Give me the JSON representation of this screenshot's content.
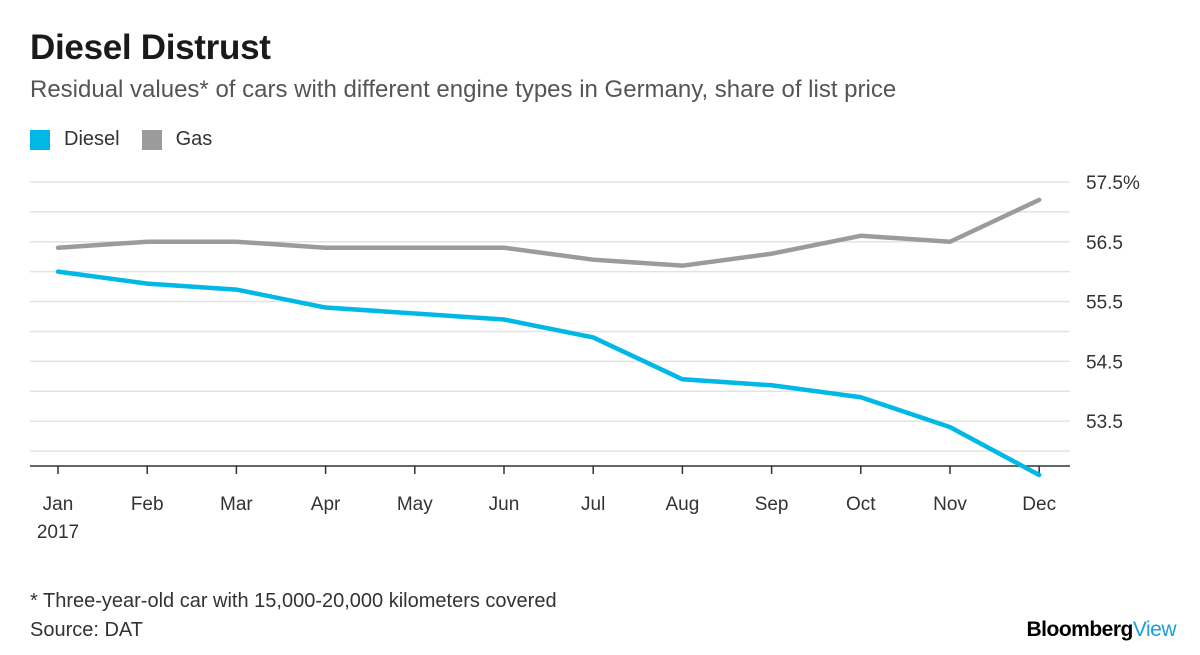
{
  "header": {
    "title": "Diesel Distrust",
    "subtitle": "Residual values* of cars with different engine types in Germany, share of list price"
  },
  "legend": [
    {
      "label": "Diesel",
      "color": "#00b8e6"
    },
    {
      "label": "Gas",
      "color": "#9b9b9b"
    }
  ],
  "chart_data": {
    "type": "line",
    "title": "Diesel Distrust",
    "xlabel": "",
    "ylabel": "",
    "categories": [
      "Jan",
      "Feb",
      "Mar",
      "Apr",
      "May",
      "Jun",
      "Jul",
      "Aug",
      "Sep",
      "Oct",
      "Nov",
      "Dec"
    ],
    "year_label": "2017",
    "ylim": [
      52.75,
      57.75
    ],
    "yticks": [
      53.5,
      54.5,
      55.5,
      56.5,
      57.5
    ],
    "ytick_labels": [
      "53.5",
      "54.5",
      "55.5",
      "56.5",
      "57.5%"
    ],
    "grid": true,
    "legend_position": "top-left",
    "series": [
      {
        "name": "Diesel",
        "color": "#00b8e6",
        "values": [
          56.0,
          55.8,
          55.7,
          55.4,
          55.3,
          55.2,
          54.9,
          54.2,
          54.1,
          53.9,
          53.4,
          52.6
        ]
      },
      {
        "name": "Gas",
        "color": "#9b9b9b",
        "values": [
          56.4,
          56.5,
          56.5,
          56.4,
          56.4,
          56.4,
          56.2,
          56.1,
          56.3,
          56.6,
          56.5,
          57.2
        ]
      }
    ]
  },
  "footer": {
    "note": "* Three-year-old car with 15,000-20,000 kilometers covered",
    "source": "Source: DAT",
    "brand_primary": "Bloomberg",
    "brand_secondary": "View"
  }
}
